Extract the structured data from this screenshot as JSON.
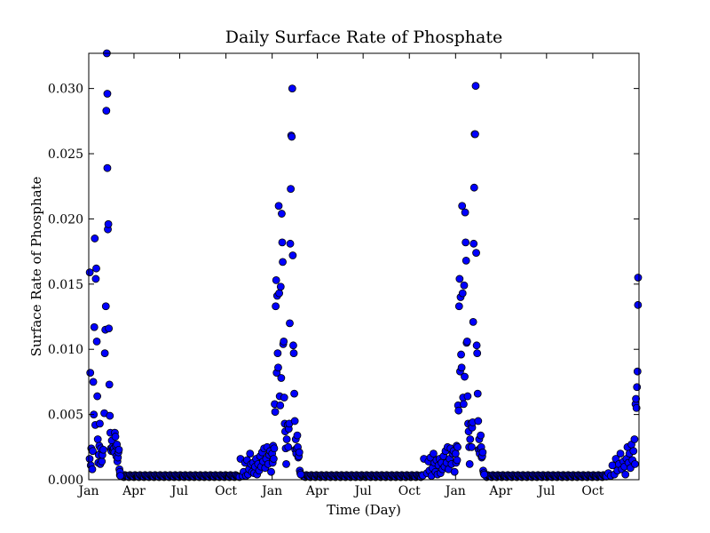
{
  "chart_data": {
    "type": "scatter",
    "title": "Daily Surface Rate of Phosphate",
    "xlabel": "Time (Day)",
    "ylabel": "Surface Rate of Phosphate",
    "xlim": [
      "Jan",
      "Dec (end of year 3)"
    ],
    "ylim": [
      0.0,
      0.0327
    ],
    "grid": false,
    "legend": "none",
    "point_color": "#0000ff",
    "point_edge_color": "#000000",
    "x_ticks": [
      "Jan",
      "Apr",
      "Jul",
      "Oct",
      "Jan",
      "Apr",
      "Jul",
      "Oct",
      "Jan",
      "Apr",
      "Jul",
      "Oct"
    ],
    "y_ticks": [
      "0.000",
      "0.005",
      "0.010",
      "0.015",
      "0.020",
      "0.025",
      "0.030"
    ],
    "series": [
      {
        "year_1": [
          [
            "Jan 2",
            0.0016
          ],
          [
            "Jan 3",
            0.0159
          ],
          [
            "Jan 4",
            0.0082
          ],
          [
            "Jan 5",
            0.0011
          ],
          [
            "Jan 6",
            0.0024
          ],
          [
            "Jan 8",
            0.0008
          ],
          [
            "Jan 9",
            0.0022
          ],
          [
            "Jan 10",
            0.0075
          ],
          [
            "Jan 11",
            0.005
          ],
          [
            "Jan 12",
            0.0117
          ],
          [
            "Jan 13",
            0.0185
          ],
          [
            "Jan 14",
            0.0042
          ],
          [
            "Jan 15",
            0.0154
          ],
          [
            "Jan 16",
            0.0162
          ],
          [
            "Jan 17",
            0.0106
          ],
          [
            "Jan 18",
            0.0064
          ],
          [
            "Jan 19",
            0.0031
          ],
          [
            "Jan 20",
            0.0013
          ],
          [
            "Jan 21",
            0.0019
          ],
          [
            "Jan 22",
            0.0026
          ],
          [
            "Jan 23",
            0.0043
          ],
          [
            "Jan 24",
            0.0012
          ],
          [
            "Jan 25",
            0.0024
          ],
          [
            "Jan 27",
            0.0014
          ],
          [
            "Jan 28",
            0.0019
          ],
          [
            "Jan 30",
            0.0023
          ],
          [
            "Feb 1",
            0.0051
          ],
          [
            "Feb 2",
            0.0097
          ],
          [
            "Feb 3",
            0.0115
          ],
          [
            "Feb 4",
            0.0133
          ],
          [
            "Feb 5",
            0.0283
          ],
          [
            "Feb 6",
            0.0327
          ],
          [
            "Feb 7",
            0.0239
          ],
          [
            "Feb 8",
            0.0192
          ],
          [
            "Feb 9",
            0.0196
          ],
          [
            "Feb 10",
            0.0116
          ],
          [
            "Feb 11",
            0.0073
          ],
          [
            "Feb 12",
            0.0049
          ],
          [
            "Feb 13",
            0.0036
          ],
          [
            "Feb 14",
            0.0024
          ],
          [
            "Feb 15",
            0.0022
          ],
          [
            "Feb 16",
            0.003
          ],
          [
            "Feb 17",
            0.0025
          ],
          [
            "Feb 18",
            0.0023
          ],
          [
            "Feb 19",
            0.0022
          ],
          [
            "Feb 20",
            0.0024
          ],
          [
            "Feb 21",
            0.0021
          ],
          [
            "Feb 22",
            0.0036
          ],
          [
            "Feb 23",
            0.0033
          ],
          [
            "Feb 24",
            0.0026
          ],
          [
            "Feb 25",
            0.0018
          ],
          [
            "Feb 26",
            0.0027
          ],
          [
            "Feb 27",
            0.0014
          ],
          [
            "Feb 28",
            0.0017
          ],
          [
            "Mar 1",
            0.0021
          ],
          [
            "Mar 2",
            0.0023
          ],
          [
            "Mar 3",
            0.0008
          ],
          [
            "Mar 4",
            0.0006
          ],
          [
            "Mar 5",
            0.0003
          ],
          [
            "Feb 7",
            0.0296
          ]
        ],
        "year_2": [
          [
            "Oct 30",
            0.0016
          ],
          [
            "Nov 3",
            0.0003
          ],
          [
            "Nov 5",
            0.0006
          ],
          [
            "Nov 8",
            0.0013
          ],
          [
            "Nov 10",
            0.0003
          ],
          [
            "Nov 12",
            0.0015
          ],
          [
            "Nov 14",
            0.0004
          ],
          [
            "Nov 16",
            0.0008
          ],
          [
            "Nov 18",
            0.002
          ],
          [
            "Nov 20",
            0.0012
          ],
          [
            "Nov 22",
            0.0006
          ],
          [
            "Nov 24",
            0.0013
          ],
          [
            "Nov 26",
            0.0005
          ],
          [
            "Nov 28",
            0.001
          ],
          [
            "Nov 30",
            0.0016
          ],
          [
            "Dec 2",
            0.0004
          ],
          [
            "Dec 4",
            0.0012
          ],
          [
            "Dec 6",
            0.0007
          ],
          [
            "Dec 8",
            0.0018
          ],
          [
            "Dec 10",
            0.001
          ],
          [
            "Dec 12",
            0.0021
          ],
          [
            "Dec 14",
            0.0014
          ],
          [
            "Dec 16",
            0.0024
          ],
          [
            "Dec 18",
            0.0009
          ],
          [
            "Dec 20",
            0.0016
          ],
          [
            "Dec 22",
            0.0025
          ],
          [
            "Dec 24",
            0.0012
          ],
          [
            "Dec 26",
            0.0019
          ],
          [
            "Dec 28",
            0.0022
          ],
          [
            "Dec 30",
            0.0006
          ],
          [
            "Jan 1",
            0.002
          ],
          [
            "Jan 2",
            0.0013
          ],
          [
            "Jan 3",
            0.0026
          ],
          [
            "Jan 4",
            0.0016
          ],
          [
            "Jan 5",
            0.0024
          ],
          [
            "Jan 6",
            0.0058
          ],
          [
            "Jan 7",
            0.0052
          ],
          [
            "Jan 8",
            0.0133
          ],
          [
            "Jan 9",
            0.0153
          ],
          [
            "Jan 10",
            0.0082
          ],
          [
            "Jan 11",
            0.0141
          ],
          [
            "Jan 12",
            0.0097
          ],
          [
            "Jan 13",
            0.0086
          ],
          [
            "Jan 14",
            0.021
          ],
          [
            "Jan 15",
            0.0143
          ],
          [
            "Jan 16",
            0.0064
          ],
          [
            "Jan 17",
            0.0057
          ],
          [
            "Jan 18",
            0.0148
          ],
          [
            "Jan 19",
            0.0078
          ],
          [
            "Jan 20",
            0.0204
          ],
          [
            "Jan 21",
            0.0182
          ],
          [
            "Jan 22",
            0.0167
          ],
          [
            "Jan 23",
            0.0104
          ],
          [
            "Jan 24",
            0.0106
          ],
          [
            "Jan 25",
            0.0063
          ],
          [
            "Jan 26",
            0.0043
          ],
          [
            "Jan 27",
            0.0037
          ],
          [
            "Jan 28",
            0.0024
          ],
          [
            "Jan 29",
            0.0012
          ],
          [
            "Jan 30",
            0.0031
          ],
          [
            "Feb 1",
            0.0042
          ],
          [
            "Feb 2",
            0.0025
          ],
          [
            "Feb 3",
            0.0039
          ],
          [
            "Feb 4",
            0.0043
          ],
          [
            "Feb 5",
            0.012
          ],
          [
            "Feb 6",
            0.0181
          ],
          [
            "Feb 7",
            0.0223
          ],
          [
            "Feb 8",
            0.0264
          ],
          [
            "Feb 9",
            0.0263
          ],
          [
            "Feb 10",
            0.03
          ],
          [
            "Feb 11",
            0.0172
          ],
          [
            "Feb 12",
            0.0103
          ],
          [
            "Feb 13",
            0.0097
          ],
          [
            "Feb 14",
            0.0066
          ],
          [
            "Feb 15",
            0.0045
          ],
          [
            "Feb 16",
            0.0023
          ],
          [
            "Feb 17",
            0.0031
          ],
          [
            "Feb 18",
            0.002
          ],
          [
            "Feb 19",
            0.0024
          ],
          [
            "Feb 20",
            0.0034
          ],
          [
            "Feb 21",
            0.0025
          ],
          [
            "Feb 22",
            0.0017
          ],
          [
            "Feb 23",
            0.0018
          ],
          [
            "Feb 24",
            0.0021
          ],
          [
            "Feb 25",
            0.0007
          ],
          [
            "Feb 26",
            0.0005
          ],
          [
            "Feb 27",
            0.0004
          ]
        ],
        "year_3": [
          [
            "Oct 30",
            0.0016
          ],
          [
            "Nov 5",
            0.0005
          ],
          [
            "Nov 8",
            0.0014
          ],
          [
            "Nov 10",
            0.0007
          ],
          [
            "Nov 12",
            0.0017
          ],
          [
            "Nov 14",
            0.0003
          ],
          [
            "Nov 16",
            0.0009
          ],
          [
            "Nov 18",
            0.002
          ],
          [
            "Nov 20",
            0.0013
          ],
          [
            "Nov 22",
            0.0006
          ],
          [
            "Nov 24",
            0.0015
          ],
          [
            "Nov 26",
            0.0004
          ],
          [
            "Nov 28",
            0.0011
          ],
          [
            "Nov 30",
            0.0016
          ],
          [
            "Dec 2",
            0.0005
          ],
          [
            "Dec 4",
            0.0013
          ],
          [
            "Dec 6",
            0.0008
          ],
          [
            "Dec 8",
            0.0018
          ],
          [
            "Dec 10",
            0.001
          ],
          [
            "Dec 12",
            0.0022
          ],
          [
            "Dec 14",
            0.0013
          ],
          [
            "Dec 16",
            0.0025
          ],
          [
            "Dec 18",
            0.0008
          ],
          [
            "Dec 20",
            0.0016
          ],
          [
            "Dec 22",
            0.0024
          ],
          [
            "Dec 24",
            0.0012
          ],
          [
            "Dec 26",
            0.002
          ],
          [
            "Dec 28",
            0.0022
          ],
          [
            "Dec 30",
            0.0006
          ],
          [
            "Jan 1",
            0.002
          ],
          [
            "Jan 2",
            0.0013
          ],
          [
            "Jan 3",
            0.0026
          ],
          [
            "Jan 4",
            0.0015
          ],
          [
            "Jan 5",
            0.0025
          ],
          [
            "Jan 6",
            0.0057
          ],
          [
            "Jan 7",
            0.0053
          ],
          [
            "Jan 8",
            0.0133
          ],
          [
            "Jan 9",
            0.0154
          ],
          [
            "Jan 10",
            0.0083
          ],
          [
            "Jan 11",
            0.014
          ],
          [
            "Jan 12",
            0.0096
          ],
          [
            "Jan 13",
            0.0086
          ],
          [
            "Jan 14",
            0.021
          ],
          [
            "Jan 15",
            0.0143
          ],
          [
            "Jan 16",
            0.0063
          ],
          [
            "Jan 17",
            0.0058
          ],
          [
            "Jan 18",
            0.0149
          ],
          [
            "Jan 19",
            0.0079
          ],
          [
            "Jan 20",
            0.0205
          ],
          [
            "Jan 21",
            0.0182
          ],
          [
            "Jan 22",
            0.0168
          ],
          [
            "Jan 23",
            0.0105
          ],
          [
            "Jan 24",
            0.0106
          ],
          [
            "Jan 25",
            0.0064
          ],
          [
            "Jan 26",
            0.0043
          ],
          [
            "Jan 27",
            0.0037
          ],
          [
            "Jan 28",
            0.0025
          ],
          [
            "Jan 29",
            0.0012
          ],
          [
            "Jan 30",
            0.0031
          ],
          [
            "Feb 1",
            0.0043
          ],
          [
            "Feb 2",
            0.0025
          ],
          [
            "Feb 3",
            0.004
          ],
          [
            "Feb 4",
            0.0044
          ],
          [
            "Feb 5",
            0.0121
          ],
          [
            "Feb 6",
            0.0181
          ],
          [
            "Feb 7",
            0.0224
          ],
          [
            "Feb 8",
            0.0265
          ],
          [
            "Feb 9",
            0.0265
          ],
          [
            "Feb 10",
            0.0302
          ],
          [
            "Feb 11",
            0.0174
          ],
          [
            "Feb 12",
            0.0103
          ],
          [
            "Feb 13",
            0.0097
          ],
          [
            "Feb 14",
            0.0066
          ],
          [
            "Feb 15",
            0.0045
          ],
          [
            "Feb 16",
            0.0023
          ],
          [
            "Feb 17",
            0.0031
          ],
          [
            "Feb 18",
            0.002
          ],
          [
            "Feb 19",
            0.0024
          ],
          [
            "Feb 20",
            0.0034
          ],
          [
            "Feb 21",
            0.0025
          ],
          [
            "Feb 22",
            0.0017
          ],
          [
            "Feb 23",
            0.0018
          ],
          [
            "Feb 24",
            0.0021
          ],
          [
            "Feb 25",
            0.0007
          ],
          [
            "Feb 26",
            0.0005
          ],
          [
            "Feb 27",
            0.0004
          ],
          [
            "Nov 1",
            0.0005
          ],
          [
            "Nov 6",
            0.0003
          ],
          [
            "Nov 9",
            0.0011
          ],
          [
            "Nov 13",
            0.0004
          ],
          [
            "Nov 16",
            0.0016
          ],
          [
            "Nov 19",
            0.0007
          ],
          [
            "Nov 22",
            0.0012
          ],
          [
            "Nov 25",
            0.002
          ],
          [
            "Nov 28",
            0.0008
          ],
          [
            "Dec 1",
            0.0014
          ],
          [
            "Dec 3",
            0.001
          ],
          [
            "Dec 5",
            0.0004
          ],
          [
            "Dec 7",
            0.0016
          ],
          [
            "Dec 9",
            0.0025
          ],
          [
            "Dec 11",
            0.0013
          ],
          [
            "Dec 13",
            0.002
          ],
          [
            "Dec 15",
            0.0009
          ],
          [
            "Dec 17",
            0.0027
          ],
          [
            "Dec 19",
            0.0015
          ],
          [
            "Dec 21",
            0.0022
          ],
          [
            "Dec 23",
            0.0031
          ],
          [
            "Dec 24",
            0.0012
          ],
          [
            "Dec 25",
            0.0058
          ],
          [
            "Dec 26",
            0.0062
          ],
          [
            "Dec 27",
            0.0055
          ],
          [
            "Dec 28",
            0.0071
          ],
          [
            "Dec 29",
            0.0083
          ],
          [
            "Dec 30",
            0.0134
          ],
          [
            "Dec 31",
            0.0155
          ]
        ]
      }
    ]
  }
}
